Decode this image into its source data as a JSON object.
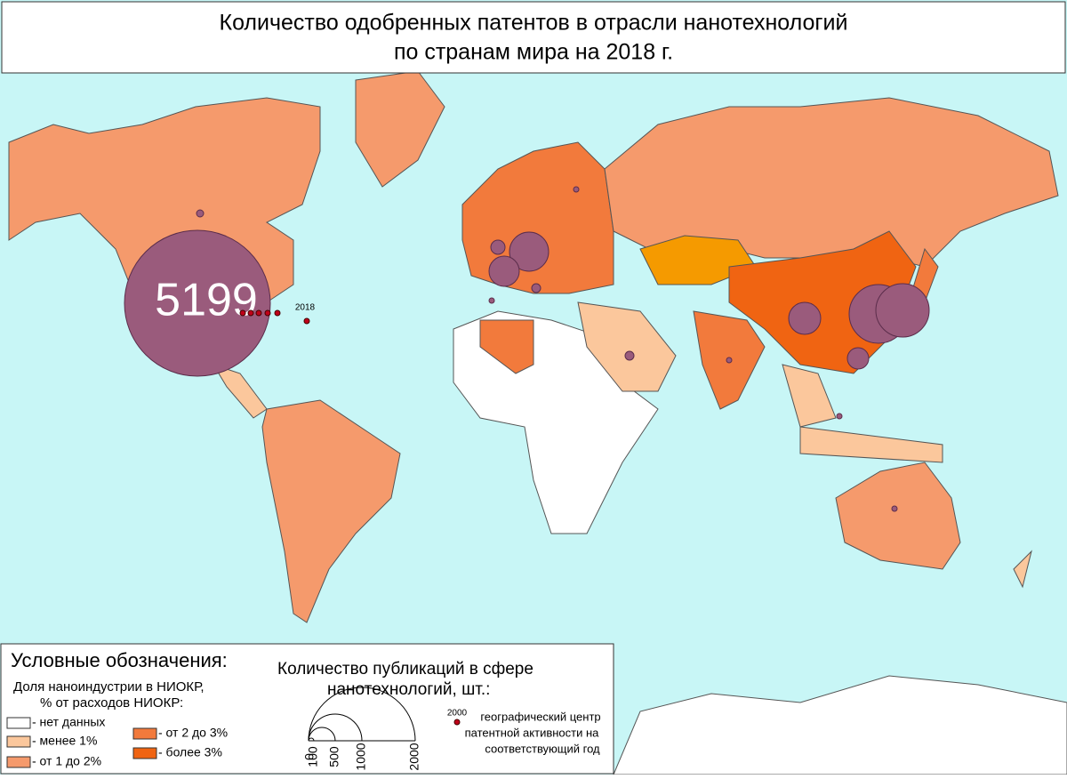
{
  "title": [
    "Количество одобренных патентов в отрасли нанотехнологий",
    "по странам мира на 2018 г."
  ],
  "map": {
    "usa_patents": 5199,
    "year": 2018
  },
  "legend": {
    "title": "Условные обозначения:",
    "share_title": [
      "Доля наноиндустрии в НИОКР,",
      "% от расходов НИОКР:"
    ],
    "share_classes": [
      {
        "label": "- нет данных",
        "color": "#ffffff"
      },
      {
        "label": "- менее 1%",
        "color": "#fbc79c"
      },
      {
        "label": "- от 1 до 2%",
        "color": "#f59a6c"
      },
      {
        "label": "- от 2 до 3%",
        "color": "#f27a3c"
      },
      {
        "label": "- более 3%",
        "color": "#f06412"
      }
    ],
    "publications_title": [
      "Количество публикаций в сфере",
      "нанотехнологий, шт.:"
    ],
    "scale": [
      0,
      100,
      500,
      1000,
      2000
    ],
    "center_year": 2000,
    "center_text": [
      "географический центр",
      "патентной активности на",
      "соответствующий год"
    ]
  }
}
